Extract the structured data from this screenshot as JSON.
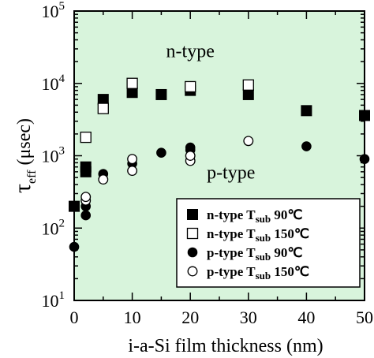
{
  "chart_data": {
    "type": "scatter",
    "x_axis": {
      "label_main": "i-a-Si film thickness (nm)",
      "range": [
        0,
        50
      ],
      "ticks": [
        "0",
        "10",
        "20",
        "30",
        "40",
        "50"
      ],
      "tick_values": [
        0,
        10,
        20,
        30,
        40,
        50
      ]
    },
    "y_axis": {
      "label_symbol": "τ",
      "label_subscript": "eff",
      "label_units": " (μsec)",
      "scale": "log",
      "range": [
        10,
        100000
      ],
      "ticks": [
        {
          "value": 10,
          "base": "10",
          "exp": "1"
        },
        {
          "value": 100,
          "base": "10",
          "exp": "2"
        },
        {
          "value": 1000,
          "base": "10",
          "exp": "3"
        },
        {
          "value": 10000,
          "base": "10",
          "exp": "4"
        },
        {
          "value": 100000,
          "base": "10",
          "exp": "5"
        }
      ]
    },
    "background_color": "#d8f4dc",
    "annotations": [
      {
        "text": "n-type",
        "x": 20,
        "y": 23000
      },
      {
        "text": "p-type",
        "x": 27,
        "y": 480
      }
    ],
    "series": [
      {
        "marker": "filled-square",
        "legend": {
          "prefix": "n-type T",
          "sub": "sub",
          "suffix": " 90℃"
        },
        "points": [
          {
            "x": 0,
            "y": 200
          },
          {
            "x": 2,
            "y": 600
          },
          {
            "x": 2,
            "y": 700
          },
          {
            "x": 5,
            "y": 6000
          },
          {
            "x": 10,
            "y": 7500
          },
          {
            "x": 15,
            "y": 7000
          },
          {
            "x": 20,
            "y": 8000
          },
          {
            "x": 30,
            "y": 7000
          },
          {
            "x": 40,
            "y": 4200
          },
          {
            "x": 50,
            "y": 3600
          }
        ]
      },
      {
        "marker": "open-square",
        "legend": {
          "prefix": "n-type T",
          "sub": "sub",
          "suffix": " 150℃"
        },
        "points": [
          {
            "x": 2,
            "y": 1800
          },
          {
            "x": 5,
            "y": 4500
          },
          {
            "x": 10,
            "y": 10000
          },
          {
            "x": 20,
            "y": 9000
          },
          {
            "x": 30,
            "y": 9500
          }
        ]
      },
      {
        "marker": "filled-circle",
        "legend": {
          "prefix": "p-type T",
          "sub": "sub",
          "suffix": " 90℃"
        },
        "points": [
          {
            "x": 0,
            "y": 55
          },
          {
            "x": 2,
            "y": 150
          },
          {
            "x": 2,
            "y": 200
          },
          {
            "x": 5,
            "y": 560
          },
          {
            "x": 10,
            "y": 780
          },
          {
            "x": 15,
            "y": 1100
          },
          {
            "x": 20,
            "y": 1200
          },
          {
            "x": 20,
            "y": 1300
          },
          {
            "x": 40,
            "y": 1350
          },
          {
            "x": 50,
            "y": 900
          }
        ]
      },
      {
        "marker": "open-circle",
        "legend": {
          "prefix": "p-type T",
          "sub": "sub",
          "suffix": " 150℃"
        },
        "points": [
          {
            "x": 2,
            "y": 240
          },
          {
            "x": 2,
            "y": 270
          },
          {
            "x": 5,
            "y": 470
          },
          {
            "x": 10,
            "y": 620
          },
          {
            "x": 10,
            "y": 900
          },
          {
            "x": 20,
            "y": 850
          },
          {
            "x": 20,
            "y": 1000
          },
          {
            "x": 30,
            "y": 1600
          }
        ]
      }
    ]
  }
}
